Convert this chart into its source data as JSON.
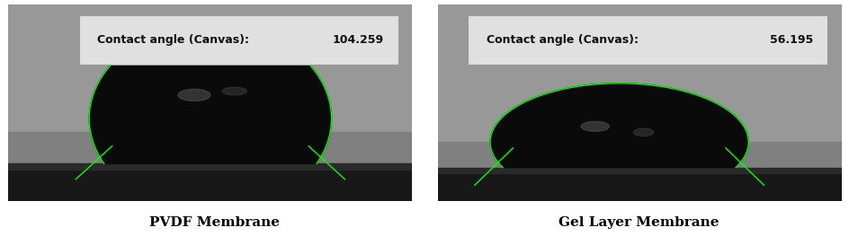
{
  "fig_width": 9.45,
  "fig_height": 2.73,
  "dpi": 100,
  "bg_color": "#ffffff",
  "left_label": "PVDF Membrane",
  "right_label": "Gel Layer Membrane",
  "left_contact_angle_label": "Contact angle (Canvas):",
  "left_contact_angle_value": "104.259",
  "right_contact_angle_label": "Contact angle (Canvas):",
  "right_contact_angle_value": "56.195",
  "label_fontsize": 11,
  "overlay_fontsize": 9,
  "panel_bg_light": "#b0b0b0",
  "panel_bg_dark": "#888888",
  "box_bg": "#e0e0e0",
  "box_border": "#999999",
  "drop_color": "#0a0a0a",
  "drop_highlight": "#303030",
  "green_line": "#00ff00",
  "surface_dark": "#111111",
  "surface_mid": "#2a2a2a",
  "gap_color": "#ffffff",
  "separator_color": "#cccccc"
}
